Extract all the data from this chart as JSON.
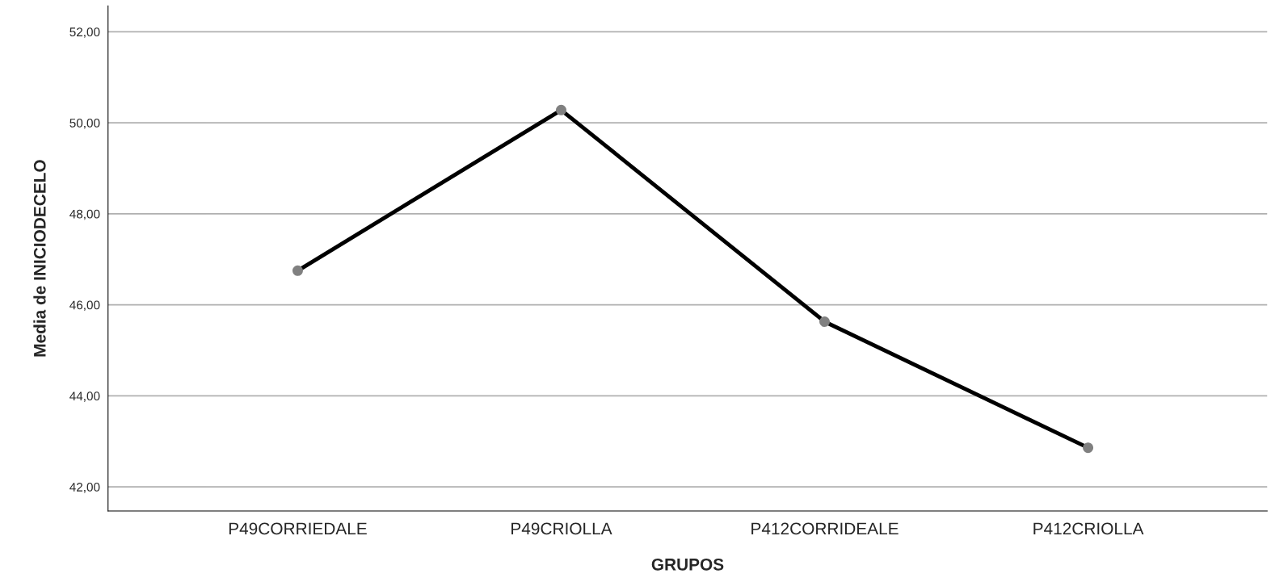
{
  "chart_data": {
    "type": "line",
    "xlabel": "GRUPOS",
    "ylabel": "Media de INICIODECELO",
    "categories": [
      "P49CORRIEDALE",
      "P49CRIOLLA",
      "P412CORRIDEALE",
      "P412CRIOLLA"
    ],
    "series": [
      {
        "color": "#000000",
        "values": [
          46.75,
          50.28,
          45.63,
          42.86
        ]
      }
    ],
    "marker": "circle",
    "ylim": [
      41.47,
      52.57
    ],
    "yticks": [
      {
        "value": 42,
        "label": "42,00"
      },
      {
        "value": 44,
        "label": "44,00"
      },
      {
        "value": 46,
        "label": "46,00"
      },
      {
        "value": 48,
        "label": "48,00"
      },
      {
        "value": 50,
        "label": "50,00"
      },
      {
        "value": 52,
        "label": "52,00"
      }
    ],
    "grid": "y"
  }
}
